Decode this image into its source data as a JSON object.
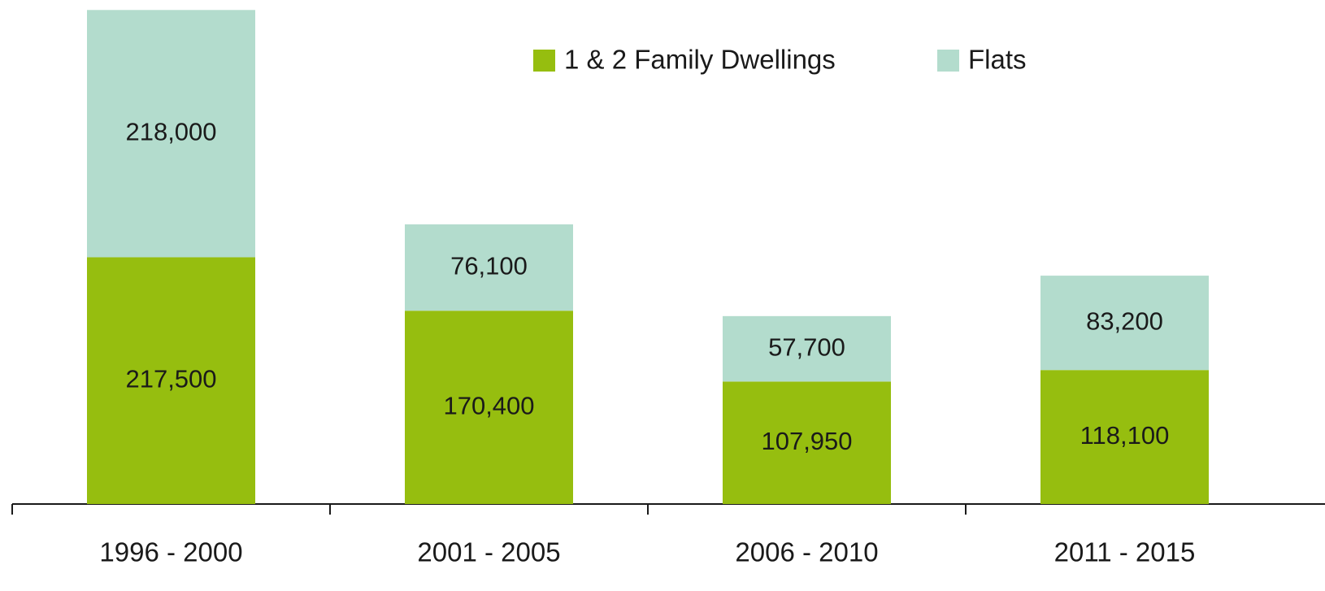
{
  "chart_data": {
    "type": "stacked_bar",
    "categories": [
      "1996 - 2000",
      "2001 - 2005",
      "2006 - 2010",
      "2011 - 2015"
    ],
    "series": [
      {
        "name": "1 & 2 Family Dwellings",
        "color": "#96be0f",
        "values": [
          217500,
          170400,
          107950,
          118100
        ],
        "value_labels": [
          "217,500",
          "170,400",
          "107,950",
          "118,100"
        ]
      },
      {
        "name": "Flats",
        "color": "#b3dccd",
        "values": [
          218000,
          76100,
          57700,
          83200
        ],
        "value_labels": [
          "218,000",
          "76,100",
          "57,700",
          "83,200"
        ]
      }
    ],
    "ylim": [
      0,
      440000
    ],
    "legend": "top"
  }
}
